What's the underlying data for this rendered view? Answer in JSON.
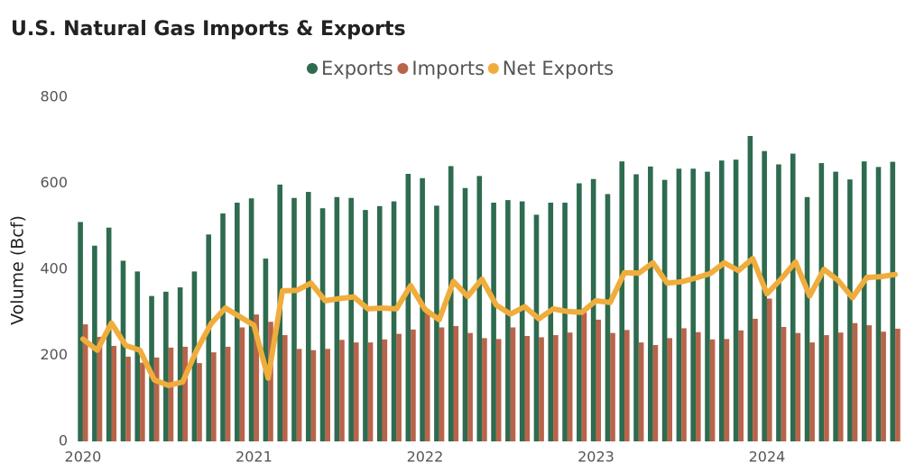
{
  "chart_data": {
    "type": "bar_line",
    "title": "U.S. Natural Gas Imports & Exports",
    "y_label": "Volume (Bcf)",
    "categories": [
      "2020",
      null,
      null,
      null,
      null,
      null,
      null,
      null,
      null,
      null,
      null,
      null,
      "2021",
      null,
      null,
      null,
      null,
      null,
      null,
      null,
      null,
      null,
      null,
      null,
      "2022",
      null,
      null,
      null,
      null,
      null,
      null,
      null,
      null,
      null,
      null,
      null,
      "2023",
      null,
      null,
      null,
      null,
      null,
      null,
      null,
      null,
      null,
      null,
      null,
      "2024",
      null,
      null,
      null,
      null,
      null,
      null,
      null,
      null,
      null
    ],
    "series": [
      {
        "name": "Exports",
        "color": "#2e6b4f",
        "kind": "bar",
        "values": [
          510,
          455,
          497,
          420,
          395,
          338,
          348,
          358,
          395,
          481,
          530,
          555,
          565,
          425,
          597,
          566,
          580,
          542,
          568,
          566,
          538,
          547,
          558,
          622,
          612,
          548,
          640,
          589,
          617,
          555,
          561,
          558,
          527,
          555,
          555,
          600,
          610,
          575,
          651,
          621,
          639,
          608,
          634,
          634,
          627,
          653,
          655,
          710,
          675,
          644,
          669,
          568,
          647,
          627,
          609,
          651,
          638,
          650
        ]
      },
      {
        "name": "Imports",
        "color": "#b8644a",
        "kind": "bar",
        "values": [
          272,
          243,
          222,
          197,
          183,
          195,
          218,
          220,
          182,
          207,
          220,
          265,
          295,
          278,
          247,
          215,
          212,
          215,
          236,
          230,
          230,
          237,
          250,
          260,
          305,
          265,
          268,
          252,
          240,
          238,
          265,
          245,
          242,
          247,
          253,
          300,
          283,
          252,
          259,
          230,
          224,
          240,
          263,
          254,
          237,
          238,
          258,
          285,
          332,
          266,
          252,
          230,
          247,
          253,
          275,
          270,
          255,
          262
        ]
      },
      {
        "name": "Net Exports",
        "color": "#f0ad3c",
        "kind": "line",
        "values": [
          238,
          212,
          275,
          223,
          212,
          143,
          130,
          138,
          213,
          274,
          310,
          290,
          270,
          147,
          350,
          351,
          368,
          327,
          332,
          336,
          308,
          310,
          308,
          362,
          307,
          283,
          372,
          337,
          377,
          317,
          296,
          313,
          285,
          308,
          302,
          300,
          327,
          323,
          392,
          391,
          415,
          368,
          371,
          380,
          390,
          415,
          397,
          425,
          343,
          378,
          417,
          338,
          400,
          374,
          334,
          381,
          383,
          388
        ]
      }
    ],
    "ylim": [
      0,
      800
    ],
    "yticks": [
      0,
      200,
      400,
      600,
      800
    ],
    "grid": false
  }
}
